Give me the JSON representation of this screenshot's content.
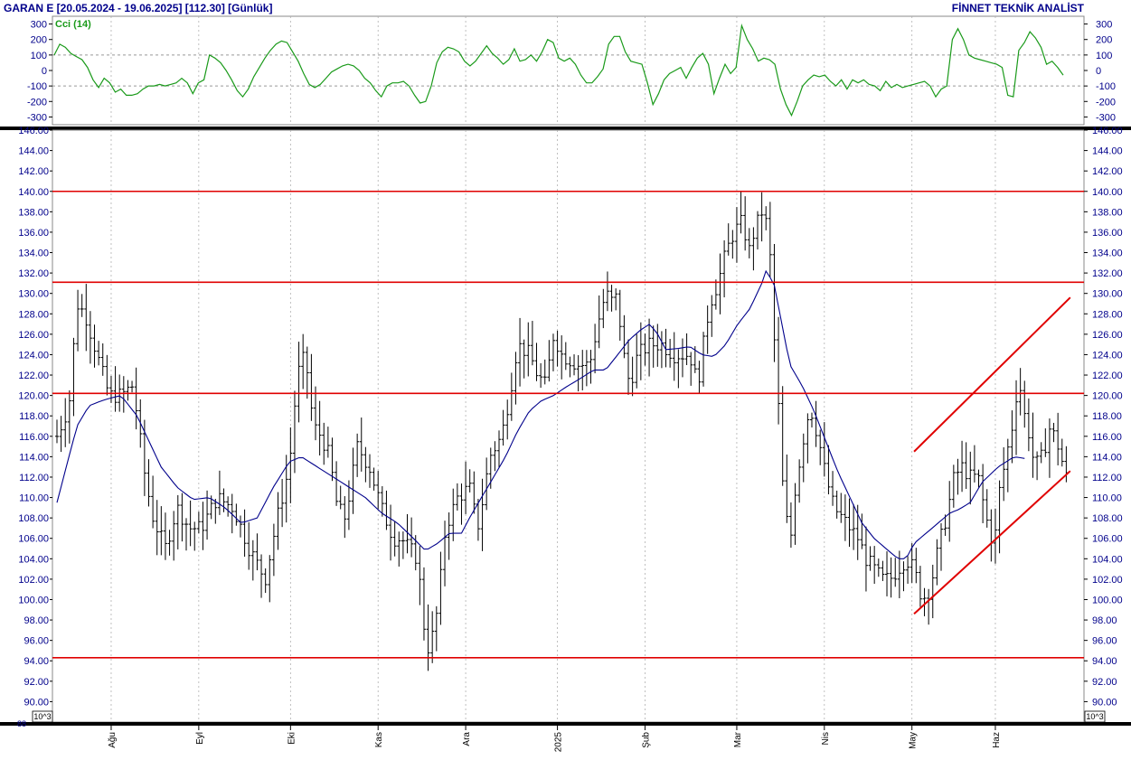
{
  "header": {
    "title": "GARAN E  [20.05.2024 - 19.06.2025]  [112.30]  [Günlük]",
    "brand": "FİNNET TEKNİK ANALİST"
  },
  "chart_data": [
    {
      "type": "line",
      "title": "Cci (14)",
      "ylim": [
        -350,
        350
      ],
      "y_ticks": [
        300,
        200,
        100,
        0,
        -100,
        -200,
        -300
      ],
      "y_tick_labels": [
        "300",
        "200",
        "100",
        "0",
        "-100",
        "-200",
        "-300"
      ],
      "reference_lines": [
        100,
        -100
      ],
      "line_color": "#1a9a1a",
      "series": [
        {
          "values": [
            100,
            170,
            150,
            110,
            90,
            70,
            20,
            -60,
            -110,
            -50,
            -80,
            -140,
            -120,
            -160,
            -160,
            -150,
            -120,
            -100,
            -100,
            -90,
            -100,
            -90,
            -80,
            -50,
            -80,
            -150,
            -80,
            -60,
            100,
            80,
            50,
            0,
            -60,
            -130,
            -170,
            -120,
            -40,
            20,
            80,
            130,
            170,
            190,
            180,
            120,
            60,
            -20,
            -90,
            -110,
            -90,
            -50,
            -10,
            10,
            30,
            40,
            30,
            0,
            -50,
            -80,
            -130,
            -170,
            -100,
            -80,
            -80,
            -70,
            -100,
            -160,
            -210,
            -200,
            -100,
            50,
            120,
            150,
            140,
            120,
            60,
            30,
            60,
            110,
            160,
            110,
            80,
            40,
            70,
            140,
            60,
            70,
            100,
            60,
            120,
            200,
            180,
            80,
            60,
            80,
            40,
            -30,
            -80,
            -80,
            -40,
            10,
            170,
            220,
            220,
            120,
            60,
            50,
            40,
            -80,
            -220,
            -150,
            -60,
            -20,
            0,
            20,
            -50,
            20,
            80,
            110,
            40,
            -150,
            -50,
            40,
            -20,
            20,
            290,
            200,
            140,
            60,
            80,
            70,
            40,
            -120,
            -220,
            -290,
            -200,
            -100,
            -60,
            -30,
            -40,
            -30,
            -70,
            -100,
            -60,
            -120,
            -60,
            -80,
            -60,
            -90,
            -100,
            -130,
            -70,
            -110,
            -90,
            -110,
            -100,
            -90,
            -80,
            -70,
            -100,
            -170,
            -120,
            -100,
            200,
            270,
            200,
            100,
            80,
            70,
            60,
            50,
            40,
            20,
            -160,
            -170,
            130,
            180,
            250,
            210,
            150,
            40,
            60,
            20,
            -30
          ]
        }
      ]
    },
    {
      "type": "line",
      "title": "",
      "xlabel": "",
      "ylabel": "",
      "ylim": [
        88,
        146
      ],
      "y_ticks": [
        146,
        144,
        142,
        140,
        138,
        136,
        134,
        132,
        130,
        128,
        126,
        124,
        122,
        120,
        118,
        116,
        114,
        112,
        110,
        108,
        106,
        104,
        102,
        100,
        98,
        96,
        94,
        92,
        90
      ],
      "y_tick_labels": [
        "146.00",
        "144.00",
        "142.00",
        "140.00",
        "138.00",
        "136.00",
        "134.00",
        "132.00",
        "130.00",
        "128.00",
        "126.00",
        "124.00",
        "122.00",
        "120.00",
        "118.00",
        "116.00",
        "114.00",
        "112.00",
        "110.00",
        "108.00",
        "106.00",
        "104.00",
        "102.00",
        "100.00",
        "98.00",
        "96.00",
        "94.00",
        "92.00",
        "90.00"
      ],
      "bottom_tick_label": "88",
      "unit_label": "10^3",
      "x_month_labels": [
        "Ağu",
        "Eyl",
        "Eki",
        "Kas",
        "Ara",
        "2025",
        "Şub",
        "Mar",
        "Nis",
        "May",
        "Haz"
      ],
      "x_month_positions": [
        13,
        34,
        56,
        77,
        98,
        120,
        141,
        163,
        184,
        205,
        225
      ],
      "n_bars": 243,
      "price_anchors": [
        [
          0,
          116
        ],
        [
          3,
          119
        ],
        [
          5,
          129
        ],
        [
          7,
          128
        ],
        [
          10,
          124
        ],
        [
          13,
          120
        ],
        [
          16,
          120
        ],
        [
          19,
          121
        ],
        [
          22,
          112
        ],
        [
          24,
          108
        ],
        [
          27,
          105
        ],
        [
          30,
          109
        ],
        [
          33,
          107
        ],
        [
          36,
          107
        ],
        [
          40,
          110
        ],
        [
          44,
          109
        ],
        [
          48,
          105
        ],
        [
          52,
          102
        ],
        [
          55,
          108
        ],
        [
          58,
          113
        ],
        [
          60,
          122
        ],
        [
          62,
          124
        ],
        [
          64,
          117
        ],
        [
          66,
          116
        ],
        [
          68,
          114
        ],
        [
          70,
          109
        ],
        [
          72,
          108
        ],
        [
          75,
          115
        ],
        [
          78,
          113
        ],
        [
          81,
          109
        ],
        [
          84,
          106
        ],
        [
          86,
          106
        ],
        [
          88,
          105
        ],
        [
          90,
          104
        ],
        [
          92,
          96
        ],
        [
          93,
          95
        ],
        [
          95,
          99
        ],
        [
          97,
          107
        ],
        [
          100,
          110
        ],
        [
          103,
          111
        ],
        [
          105,
          107
        ],
        [
          106,
          109
        ],
        [
          108,
          114
        ],
        [
          111,
          116
        ],
        [
          113,
          120
        ],
        [
          115,
          125
        ],
        [
          118,
          124
        ],
        [
          120,
          122
        ],
        [
          122,
          121
        ],
        [
          124,
          126
        ],
        [
          126,
          124
        ],
        [
          130,
          123
        ],
        [
          133,
          123
        ],
        [
          135,
          127
        ],
        [
          137,
          130
        ],
        [
          139,
          129
        ],
        [
          140,
          130
        ],
        [
          141,
          125
        ],
        [
          143,
          121
        ],
        [
          145,
          124
        ],
        [
          148,
          125
        ],
        [
          151,
          125
        ],
        [
          154,
          124
        ],
        [
          158,
          124
        ],
        [
          160,
          121
        ],
        [
          161,
          124
        ],
        [
          163,
          129
        ],
        [
          165,
          131
        ],
        [
          167,
          134
        ],
        [
          169,
          136
        ],
        [
          171,
          137
        ],
        [
          173,
          134
        ],
        [
          174,
          136
        ],
        [
          176,
          138
        ],
        [
          177,
          137
        ],
        [
          178,
          134
        ],
        [
          179,
          126
        ],
        [
          180,
          120
        ],
        [
          181,
          112
        ],
        [
          183,
          105
        ],
        [
          184,
          110
        ],
        [
          186,
          115
        ],
        [
          188,
          119
        ],
        [
          190,
          116
        ],
        [
          192,
          112
        ],
        [
          194,
          109
        ],
        [
          196,
          108
        ],
        [
          198,
          107
        ],
        [
          200,
          106
        ],
        [
          202,
          104
        ],
        [
          204,
          103
        ],
        [
          206,
          102
        ],
        [
          208,
          102
        ],
        [
          210,
          103
        ],
        [
          212,
          104
        ],
        [
          214,
          103
        ],
        [
          216,
          100
        ],
        [
          218,
          101
        ],
        [
          220,
          105
        ],
        [
          222,
          108
        ],
        [
          224,
          112
        ],
        [
          226,
          113
        ],
        [
          228,
          112
        ],
        [
          230,
          112
        ],
        [
          232,
          108
        ],
        [
          234,
          105
        ],
        [
          235,
          110
        ],
        [
          237,
          114
        ],
        [
          239,
          118
        ],
        [
          240,
          122
        ],
        [
          242,
          117
        ],
        [
          243,
          116
        ],
        [
          244,
          113
        ],
        [
          246,
          114
        ],
        [
          248,
          117
        ],
        [
          250,
          115
        ],
        [
          252,
          112
        ]
      ],
      "moving_average_anchors": [
        [
          0,
          109.5
        ],
        [
          5,
          117
        ],
        [
          8,
          119
        ],
        [
          12,
          119.6
        ],
        [
          16,
          120
        ],
        [
          20,
          118
        ],
        [
          26,
          113
        ],
        [
          30,
          111
        ],
        [
          34,
          109.8
        ],
        [
          38,
          110
        ],
        [
          42,
          109
        ],
        [
          46,
          107.5
        ],
        [
          50,
          108
        ],
        [
          54,
          111
        ],
        [
          58,
          113.5
        ],
        [
          61,
          114
        ],
        [
          65,
          113
        ],
        [
          69,
          112
        ],
        [
          73,
          111
        ],
        [
          77,
          110
        ],
        [
          81,
          108.5
        ],
        [
          85,
          107.5
        ],
        [
          89,
          106
        ],
        [
          92,
          104.8
        ],
        [
          95,
          105.5
        ],
        [
          98,
          106.5
        ],
        [
          101,
          106.5
        ],
        [
          103,
          108
        ],
        [
          106,
          110
        ],
        [
          109,
          112
        ],
        [
          112,
          114
        ],
        [
          115,
          116.5
        ],
        [
          118,
          118.5
        ],
        [
          121,
          119.5
        ],
        [
          124,
          120
        ],
        [
          127,
          120.8
        ],
        [
          130,
          121.5
        ],
        [
          134,
          122.5
        ],
        [
          137,
          122.5
        ],
        [
          140,
          124
        ],
        [
          143,
          125.5
        ],
        [
          146,
          126.5
        ],
        [
          148,
          127
        ],
        [
          150,
          126
        ],
        [
          152,
          124.5
        ],
        [
          155,
          124.6
        ],
        [
          158,
          124.8
        ],
        [
          161,
          124
        ],
        [
          164,
          123.8
        ],
        [
          167,
          125
        ],
        [
          170,
          127
        ],
        [
          173,
          128.5
        ],
        [
          176,
          131
        ],
        [
          177,
          132.2
        ],
        [
          179,
          131
        ],
        [
          181,
          127
        ],
        [
          183,
          123
        ],
        [
          186,
          121
        ],
        [
          189,
          118.5
        ],
        [
          192,
          115.5
        ],
        [
          195,
          112.5
        ],
        [
          198,
          110
        ],
        [
          201,
          107.5
        ],
        [
          204,
          106
        ],
        [
          207,
          105
        ],
        [
          210,
          104
        ],
        [
          212,
          104
        ],
        [
          214,
          105.5
        ],
        [
          217,
          106.5
        ],
        [
          220,
          107.5
        ],
        [
          223,
          108.5
        ],
        [
          225,
          108.8
        ],
        [
          228,
          109.5
        ],
        [
          231,
          111.5
        ],
        [
          235,
          113
        ],
        [
          239,
          114
        ],
        [
          242,
          113.8
        ]
      ],
      "horizontal_levels": [
        140,
        131.1,
        120.2,
        94.3
      ],
      "channel_lines": [
        {
          "from": [
            214,
            98.6
          ],
          "to": [
            253,
            112.6
          ]
        },
        {
          "from": [
            214,
            114.5
          ],
          "to": [
            253,
            129.6
          ]
        }
      ],
      "colors": {
        "price": "#000000",
        "moving_average": "#00008b",
        "levels": "#e00000",
        "channel": "#e00000",
        "grid": "#b0b0b0"
      }
    }
  ]
}
